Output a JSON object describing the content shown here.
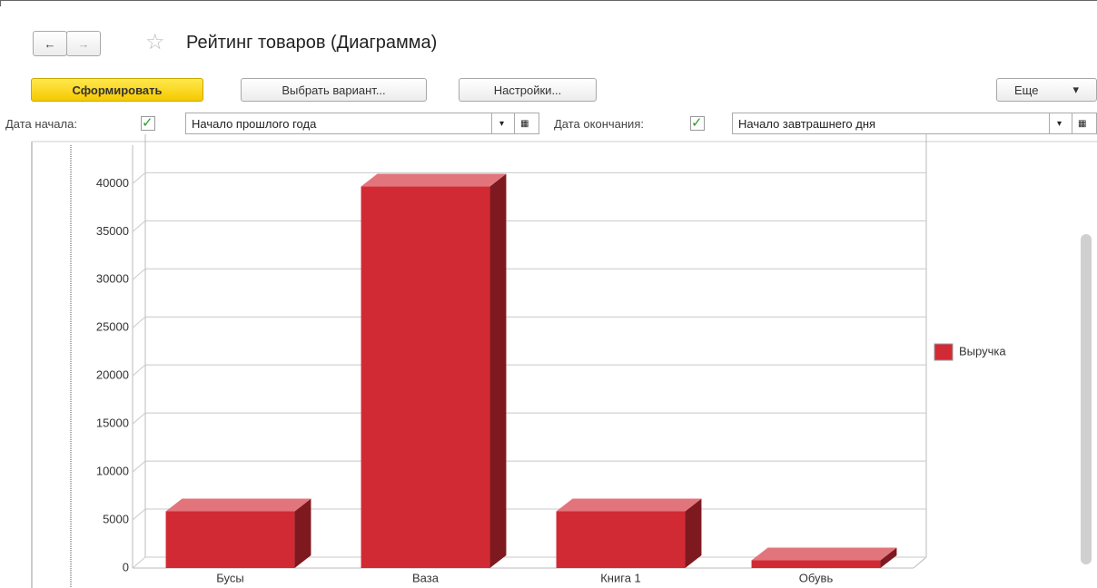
{
  "header": {
    "title": "Рейтинг товаров (Диаграмма)"
  },
  "toolbar": {
    "generate": "Сформировать",
    "variant": "Выбрать вариант...",
    "settings": "Настройки...",
    "more": "Еще"
  },
  "filters": {
    "start_label": "Дата начала:",
    "start_value": "Начало прошлого года",
    "end_label": "Дата окончания:",
    "end_value": "Начало завтрашнего дня"
  },
  "chart_data": {
    "type": "bar3d",
    "categories": [
      "Бусы",
      "Ваза",
      "Книга 1",
      "Обувь"
    ],
    "series": [
      {
        "name": "Выручка",
        "color": "#d22a35",
        "values": [
          5900,
          39700,
          5900,
          800
        ]
      }
    ],
    "ylim": [
      0,
      44000
    ],
    "yticks": [
      0,
      5000,
      10000,
      15000,
      20000,
      25000,
      30000,
      35000,
      40000
    ],
    "grid": true,
    "legend": "right"
  }
}
